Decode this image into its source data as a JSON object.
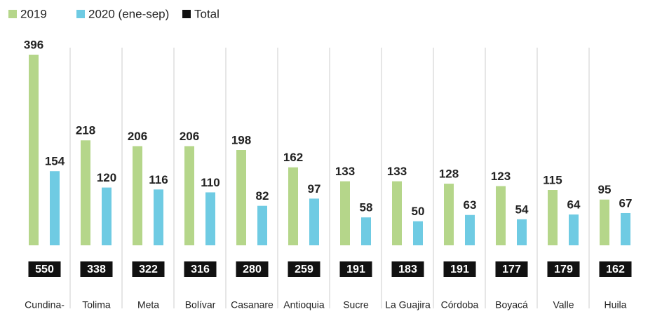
{
  "chart_data": {
    "type": "bar",
    "categories": [
      "Cundina-",
      "Tolima",
      "Meta",
      "Bolívar",
      "Casanare",
      "Antioquia",
      "Sucre",
      "La Guajira",
      "Córdoba",
      "Boyacá",
      "Valle",
      "Huila"
    ],
    "series": [
      {
        "name": "2019",
        "color": "#b5d68a",
        "values": [
          396,
          218,
          206,
          206,
          198,
          162,
          133,
          133,
          128,
          123,
          115,
          95
        ]
      },
      {
        "name": "2020 (ene-sep)",
        "color": "#6fcbe3",
        "values": [
          154,
          120,
          116,
          110,
          82,
          97,
          58,
          50,
          63,
          54,
          64,
          67
        ]
      },
      {
        "name": "Total",
        "color": "#111111",
        "values": [
          550,
          338,
          322,
          316,
          280,
          259,
          191,
          183,
          191,
          177,
          179,
          162
        ]
      }
    ]
  }
}
